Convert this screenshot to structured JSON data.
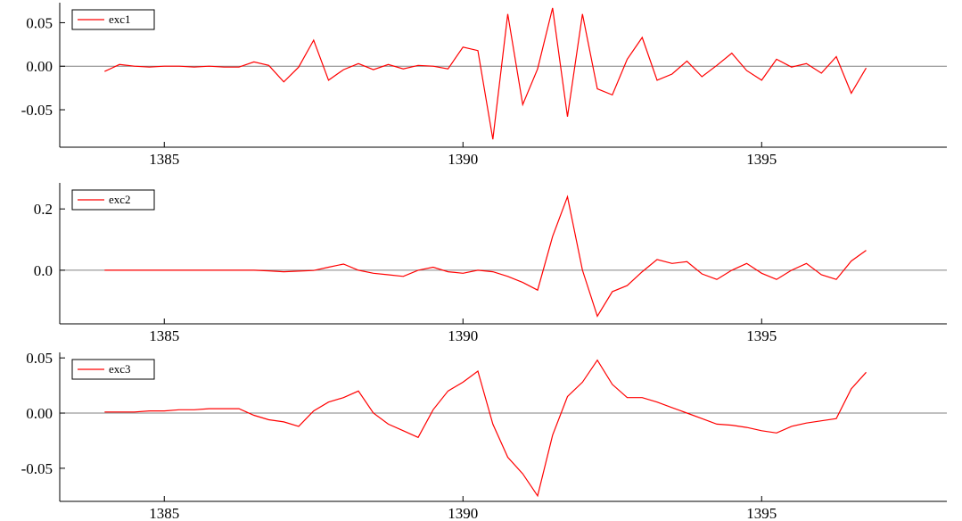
{
  "chart_data": [
    {
      "type": "line",
      "x_start": 1384,
      "x_step": 0.25,
      "xlim": [
        1383.25,
        1398.1
      ],
      "ylim": [
        -0.093,
        0.073
      ],
      "x_ticks": [
        1385,
        1390,
        1395
      ],
      "x_tick_labels": [
        "1385",
        "1390",
        "1395"
      ],
      "y_ticks": [
        -0.05,
        0.0,
        0.05
      ],
      "y_tick_labels": [
        "-0.05",
        "0.00",
        "0.05"
      ],
      "zero_line": true,
      "legend_position": "top-left",
      "series_color": "#ff0000",
      "series": [
        {
          "name": "exc1",
          "values": [
            -0.006,
            0.002,
            0.0,
            -0.001,
            0.0,
            0.0,
            -0.001,
            0.0,
            -0.001,
            -0.001,
            0.005,
            0.001,
            -0.018,
            -0.001,
            0.03,
            -0.016,
            -0.004,
            0.003,
            -0.004,
            0.002,
            -0.003,
            0.001,
            0.0,
            -0.003,
            0.022,
            0.018,
            -0.084,
            0.06,
            -0.044,
            -0.003,
            0.067,
            -0.058,
            0.06,
            -0.026,
            -0.033,
            0.008,
            0.033,
            -0.016,
            -0.009,
            0.006,
            -0.012,
            0.001,
            0.015,
            -0.005,
            -0.016,
            0.008,
            -0.001,
            0.003,
            -0.008,
            0.011,
            -0.031,
            -0.002
          ]
        }
      ]
    },
    {
      "type": "line",
      "x_start": 1384,
      "x_step": 0.25,
      "xlim": [
        1383.25,
        1398.1
      ],
      "ylim": [
        -0.175,
        0.285
      ],
      "x_ticks": [
        1385,
        1390,
        1395
      ],
      "x_tick_labels": [
        "1385",
        "1390",
        "1395"
      ],
      "y_ticks": [
        0.0,
        0.2
      ],
      "y_tick_labels": [
        "0.0",
        "0.2"
      ],
      "zero_line": true,
      "legend_position": "top-left",
      "series_color": "#ff0000",
      "series": [
        {
          "name": "exc2",
          "values": [
            0.0,
            0.0,
            0.0,
            0.0,
            0.0,
            0.0,
            0.0,
            0.0,
            0.0,
            0.0,
            0.0,
            -0.002,
            -0.005,
            -0.003,
            -0.001,
            0.01,
            0.02,
            0.0,
            -0.01,
            -0.015,
            -0.02,
            0.0,
            0.01,
            -0.005,
            -0.01,
            0.0,
            -0.005,
            -0.02,
            -0.04,
            -0.065,
            0.11,
            0.24,
            0.0,
            -0.15,
            -0.07,
            -0.05,
            -0.005,
            0.035,
            0.022,
            0.028,
            -0.012,
            -0.03,
            0.0,
            0.022,
            -0.01,
            -0.03,
            0.0,
            0.022,
            -0.015,
            -0.03,
            0.03,
            0.065
          ]
        }
      ]
    },
    {
      "type": "line",
      "x_start": 1384,
      "x_step": 0.25,
      "xlim": [
        1383.25,
        1398.1
      ],
      "ylim": [
        -0.08,
        0.055
      ],
      "x_ticks": [
        1385,
        1390,
        1395
      ],
      "x_tick_labels": [
        "1385",
        "1390",
        "1395"
      ],
      "y_ticks": [
        -0.05,
        0.0,
        0.05
      ],
      "y_tick_labels": [
        "-0.05",
        "0.00",
        "0.05"
      ],
      "zero_line": true,
      "legend_position": "top-left",
      "series_color": "#ff0000",
      "series": [
        {
          "name": "exc3",
          "values": [
            0.001,
            0.001,
            0.001,
            0.002,
            0.002,
            0.003,
            0.003,
            0.004,
            0.004,
            0.004,
            -0.002,
            -0.006,
            -0.008,
            -0.012,
            0.002,
            0.01,
            0.014,
            0.02,
            0.0,
            -0.01,
            -0.016,
            -0.022,
            0.003,
            0.02,
            0.028,
            0.038,
            -0.01,
            -0.04,
            -0.055,
            -0.075,
            -0.02,
            0.015,
            0.028,
            0.048,
            0.026,
            0.014,
            0.014,
            0.01,
            0.005,
            0.0,
            -0.005,
            -0.01,
            -0.011,
            -0.013,
            -0.016,
            -0.018,
            -0.012,
            -0.009,
            -0.007,
            -0.005,
            0.022,
            0.037
          ]
        }
      ]
    }
  ]
}
